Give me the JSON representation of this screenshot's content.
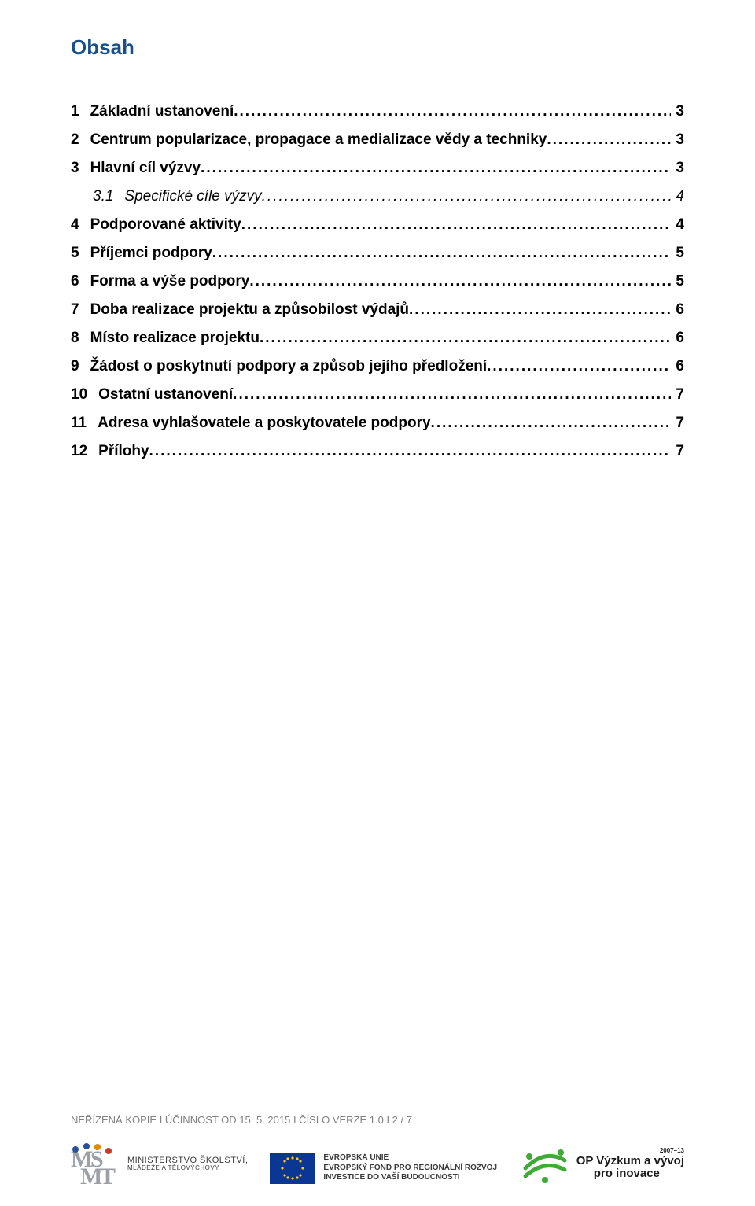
{
  "title": "Obsah",
  "toc": [
    {
      "num": "1",
      "label": "Základní ustanovení",
      "page": "3",
      "sub": false
    },
    {
      "num": "2",
      "label": "Centrum popularizace, propagace a medializace vědy a techniky",
      "page": "3",
      "sub": false
    },
    {
      "num": "3",
      "label": "Hlavní cíl výzvy",
      "page": "3",
      "sub": false
    },
    {
      "num": "3.1",
      "label": "Specifické cíle výzvy",
      "page": "4",
      "sub": true
    },
    {
      "num": "4",
      "label": "Podporované aktivity",
      "page": "4",
      "sub": false
    },
    {
      "num": "5",
      "label": "Příjemci podpory",
      "page": "5",
      "sub": false
    },
    {
      "num": "6",
      "label": "Forma a výše podpory",
      "page": "5",
      "sub": false
    },
    {
      "num": "7",
      "label": "Doba realizace projektu a způsobilost výdajů",
      "page": "6",
      "sub": false
    },
    {
      "num": "8",
      "label": "Místo realizace projektu",
      "page": "6",
      "sub": false
    },
    {
      "num": "9",
      "label": "Žádost o poskytnutí podpory a způsob jejího předložení",
      "page": "6",
      "sub": false
    },
    {
      "num": "10",
      "label": "Ostatní ustanovení",
      "page": "7",
      "sub": false
    },
    {
      "num": "11",
      "label": "Adresa vyhlašovatele a poskytovatele podpory",
      "page": "7",
      "sub": false
    },
    {
      "num": "12",
      "label": "Přílohy",
      "page": "7",
      "sub": false
    }
  ],
  "footer_text": "NEŘÍZENÁ KOPIE I ÚČINNOST OD 15. 5. 2015 I ČÍSLO VERZE 1.0 I   2 / 7",
  "logos": {
    "msmt": {
      "line1": "MINISTERSTVO ŠKOLSTVÍ,",
      "line2": "MLÁDEŽE A TĚLOVÝCHOVY"
    },
    "eu": {
      "line1": "EVROPSKÁ UNIE",
      "line2": "EVROPSKÝ FOND PRO REGIONÁLNÍ ROZVOJ",
      "line3": "INVESTICE DO VAŠÍ BUDOUCNOSTI"
    },
    "op": {
      "badge": "2007–13",
      "line1": "OP Výzkum a vývoj",
      "line2": "pro inovace"
    }
  },
  "colors": {
    "title": "#184f8b",
    "text": "#000000",
    "footer_text": "#808080",
    "eu_flag_bg": "#0a3694",
    "eu_star": "#ffcc00",
    "op_green": "#3faa35",
    "msmt_blue": "#2a4f9b",
    "msmt_orange": "#e08a00",
    "msmt_red": "#c23a2e"
  }
}
